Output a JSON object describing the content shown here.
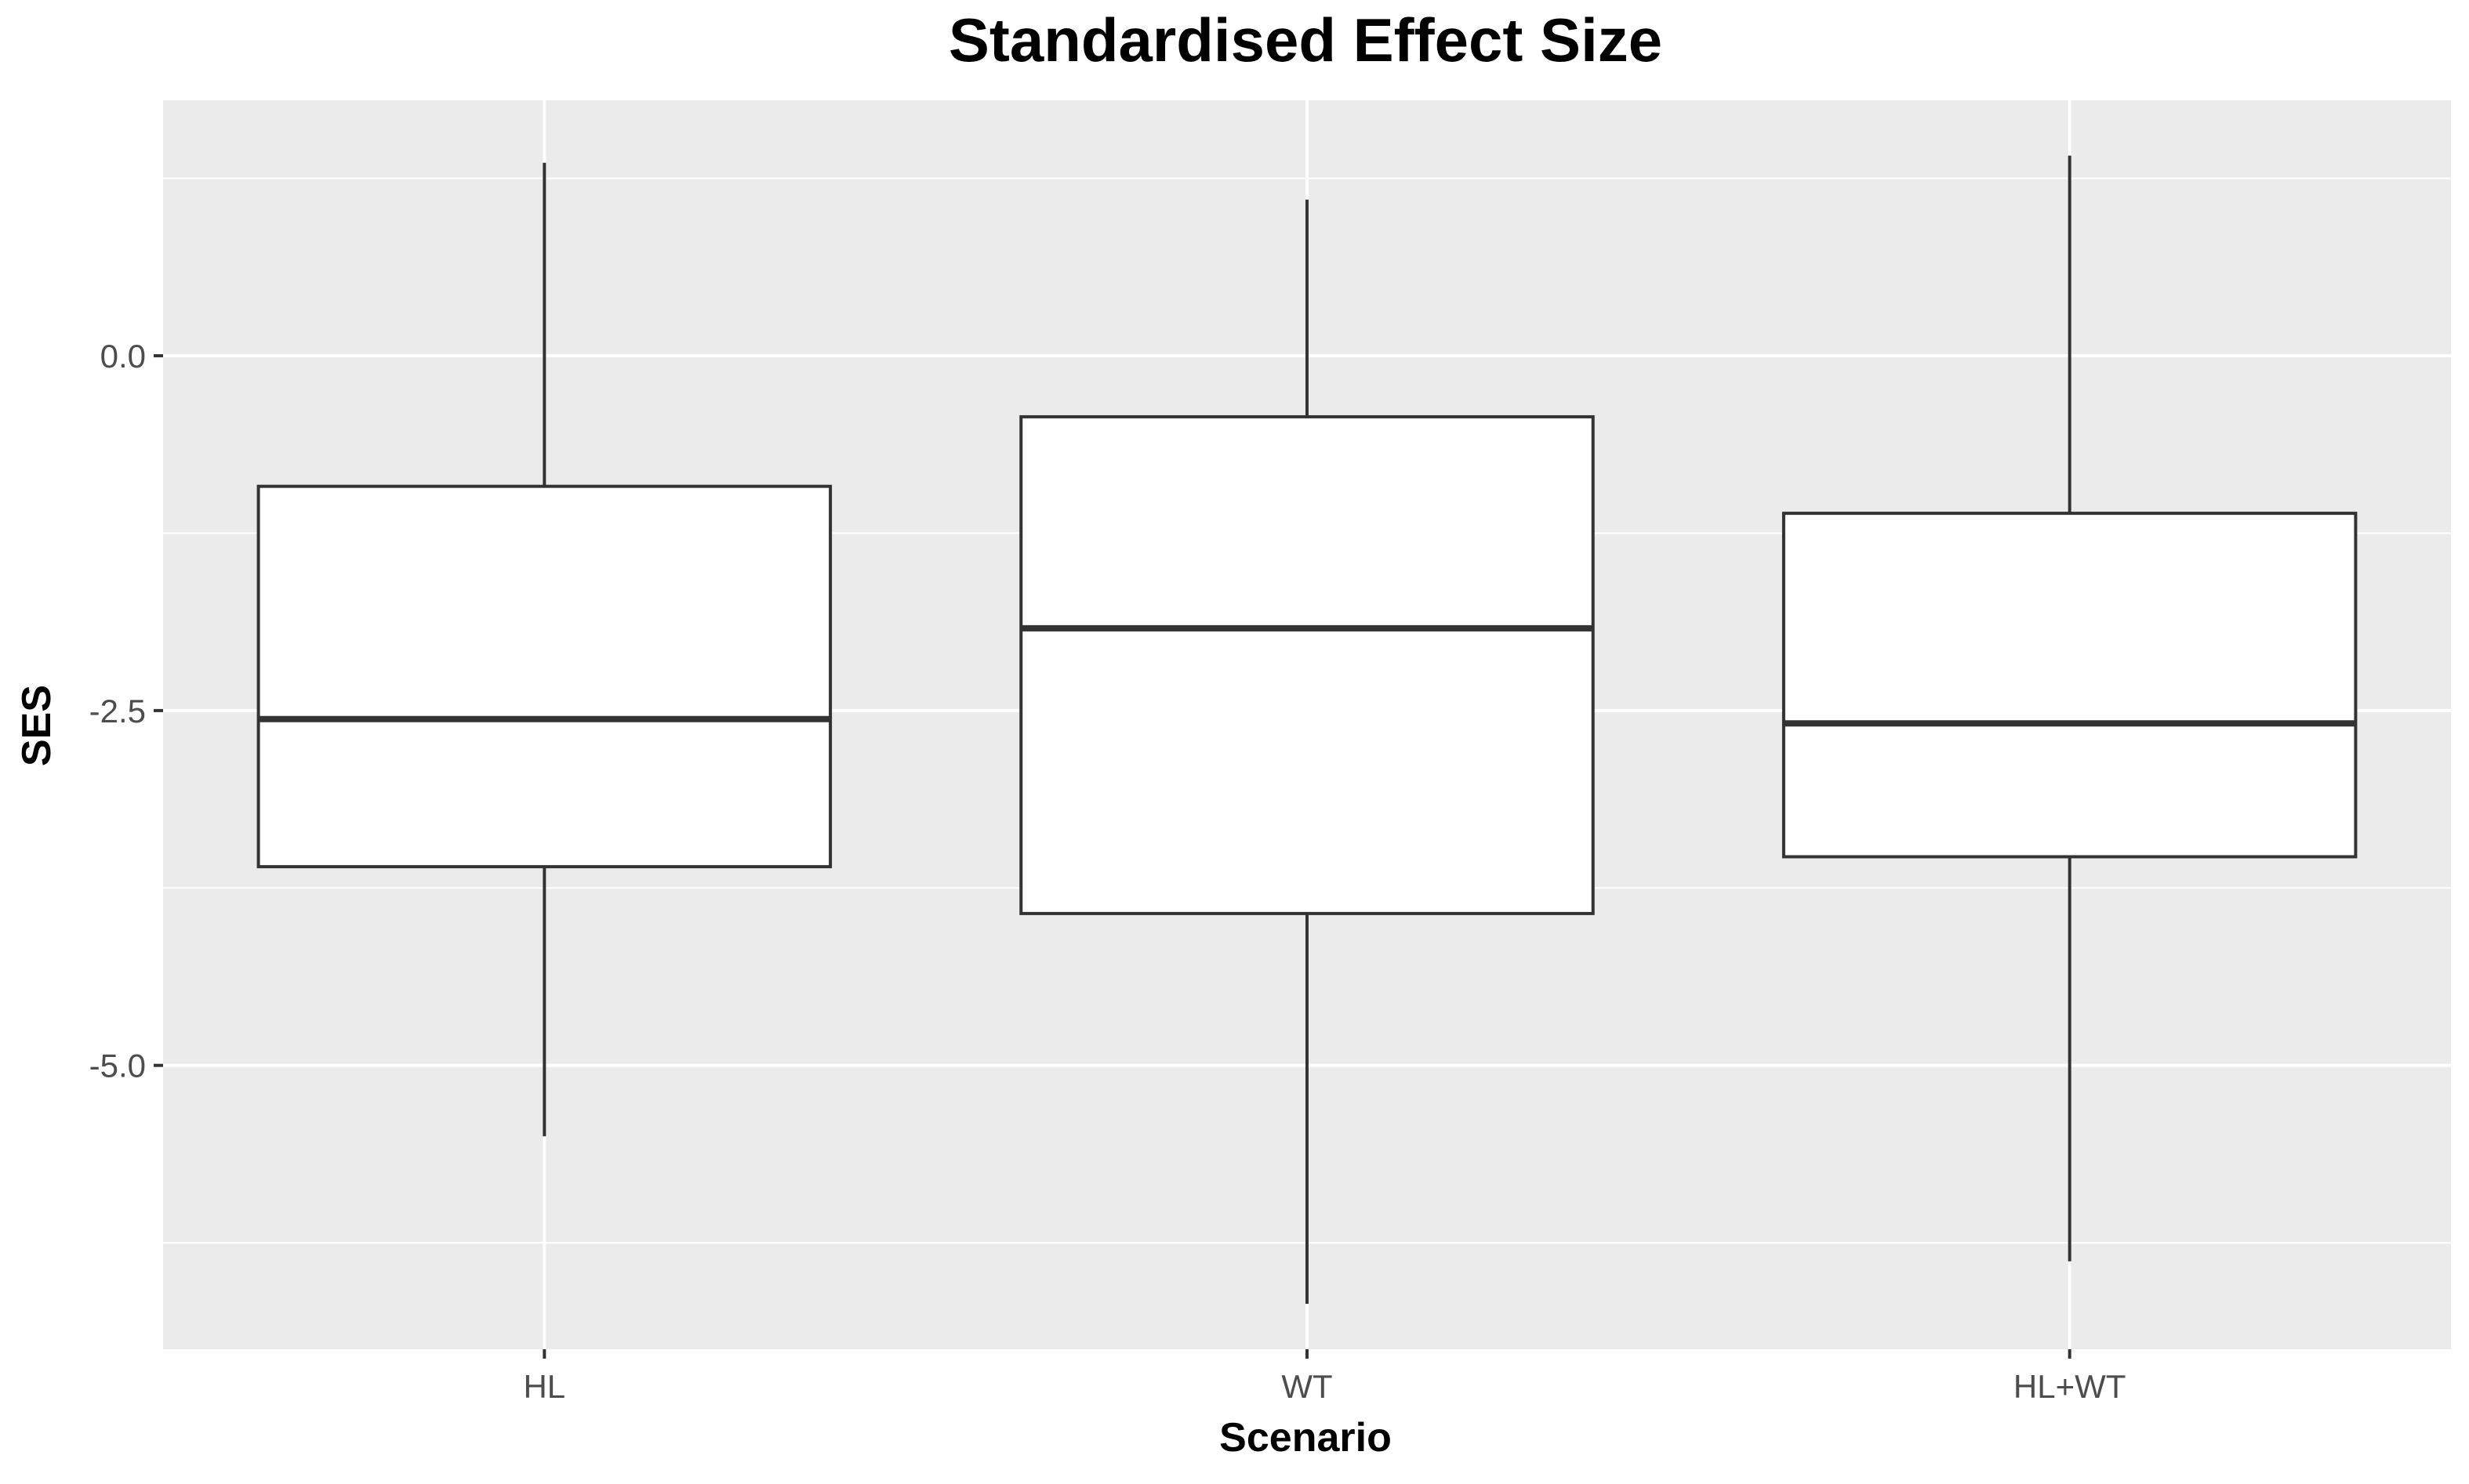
{
  "chart_data": {
    "type": "boxplot",
    "title": "Standardised Effect Size",
    "xlabel": "Scenario",
    "ylabel": "SES",
    "categories": [
      "HL",
      "WT",
      "HL+WT"
    ],
    "boxes": [
      {
        "category": "HL",
        "whisker_low": -5.5,
        "q1": -3.6,
        "median": -2.56,
        "q3": -0.92,
        "whisker_high": 1.36
      },
      {
        "category": "WT",
        "whisker_low": -6.68,
        "q1": -3.93,
        "median": -1.92,
        "q3": -0.43,
        "whisker_high": 1.1
      },
      {
        "category": "HL+WT",
        "whisker_low": -6.38,
        "q1": -3.53,
        "median": -2.59,
        "q3": -1.11,
        "whisker_high": 1.41
      }
    ],
    "y_ticks": [
      0.0,
      -2.5,
      -5.0
    ],
    "y_tick_labels": [
      "0.0",
      "-2.5",
      "-5.0"
    ],
    "ylim": [
      -7.0,
      1.8
    ],
    "grid": true,
    "colors": {
      "panel_background": "#ebebeb",
      "grid_major": "#ffffff",
      "box_fill": "#ffffff",
      "box_stroke": "#333333",
      "tick_label": "#4d4d4d",
      "axis_tick": "#333333"
    }
  }
}
